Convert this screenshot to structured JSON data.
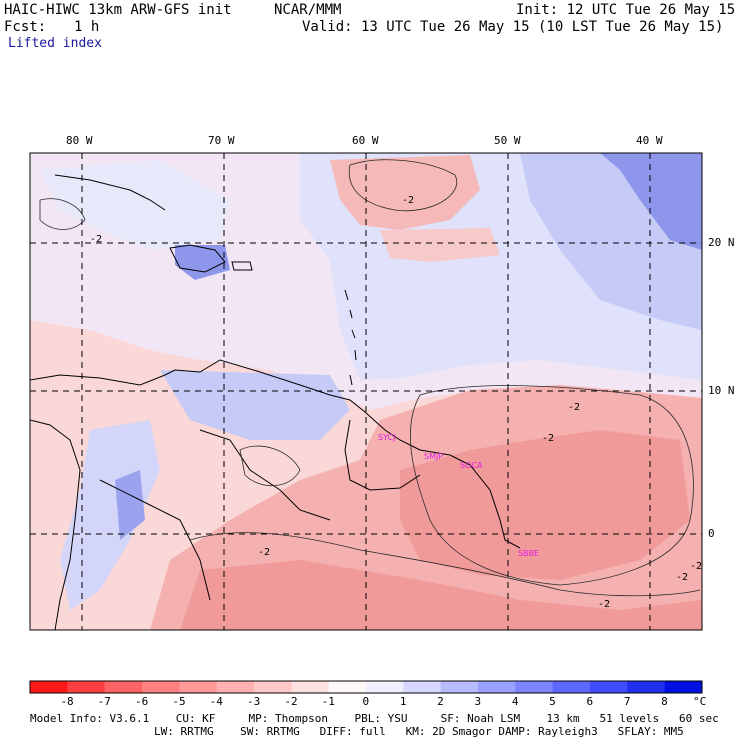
{
  "header": {
    "model": "HAIC-HIWC 13km ARW-GFS init",
    "org": "NCAR/MMM",
    "init": "Init: 12 UTC Tue 26 May 15",
    "fcst_label": "Fcst:",
    "fcst_value": "1 h",
    "valid": "Valid: 13 UTC Tue 26 May 15 (10 LST Tue 26 May 15)",
    "field": "Lifted index"
  },
  "map": {
    "lon_labels": [
      "80 W",
      "70 W",
      "60 W",
      "50 W",
      "40 W"
    ],
    "lat_labels": [
      "20 N",
      "10 N",
      "0"
    ],
    "contour_labels": [
      "-2",
      "-2",
      "-2",
      "-2",
      "-2",
      "-2",
      "-2",
      "-2"
    ],
    "stations": [
      "SYCJ",
      "SMJP",
      "SOCA",
      "SBBE"
    ],
    "colors": {
      "strong_negative": "#f08080",
      "negative": "#f7b3b3",
      "weak_negative": "#fbd8d8",
      "neutral": "#fff3f0",
      "weak_positive": "#e7e9fb",
      "positive": "#b9bff4",
      "strong_positive": "#6f78e6",
      "station": "#e020e0"
    }
  },
  "colorbar": {
    "ticks": [
      "-8",
      "-7",
      "-6",
      "-5",
      "-4",
      "-3",
      "-2",
      "-1",
      "0",
      "1",
      "2",
      "3",
      "4",
      "5",
      "6",
      "7",
      "8"
    ],
    "unit": "°C",
    "colors": [
      "#ff1a1a",
      "#ff4040",
      "#ff6464",
      "#ff8080",
      "#ff9999",
      "#ffb0b0",
      "#ffc8c8",
      "#ffe0e0",
      "#fff8f8",
      "#f0f0ff",
      "#d6d8ff",
      "#b8bcff",
      "#9aa0ff",
      "#7c84ff",
      "#5e68ff",
      "#3f4cff",
      "#2030f0",
      "#0010e0"
    ]
  },
  "footer": {
    "line1": "Model Info: V3.6.1    CU: KF     MP: Thompson    PBL: YSU     SF: Noah LSM    13 km   51 levels   60 sec",
    "line2": "LW: RRTMG    SW: RRTMG   DIFF: full   KM: 2D Smagor DAMP: Rayleigh3   SFLAY: MM5"
  }
}
